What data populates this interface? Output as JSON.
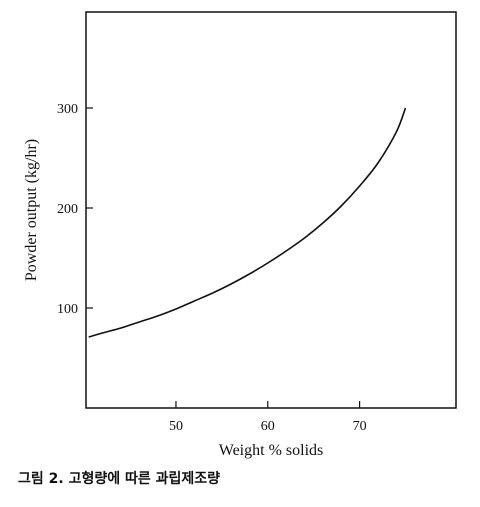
{
  "caption": "그림 2. 고형량에 따른 과립제조량",
  "chart_data": {
    "type": "line",
    "xlabel": "Weight % solids",
    "ylabel": "Powder output (kg/hr)",
    "x_ticks": [
      50,
      60,
      70
    ],
    "y_ticks": [
      100,
      200,
      300
    ],
    "xlim": [
      40.2,
      80.5
    ],
    "ylim": [
      0,
      396
    ],
    "grid": false,
    "series": [
      {
        "x": [
          40.5,
          42,
          44,
          46,
          48,
          50,
          52,
          54,
          56,
          58,
          60,
          62,
          64,
          66,
          68,
          70,
          72,
          74,
          75
        ],
        "y": [
          71,
          75,
          80,
          86,
          92,
          99,
          107,
          115,
          124,
          134,
          145,
          157,
          170,
          185,
          202,
          222,
          245,
          276,
          300
        ],
        "color": "#111111"
      }
    ]
  }
}
